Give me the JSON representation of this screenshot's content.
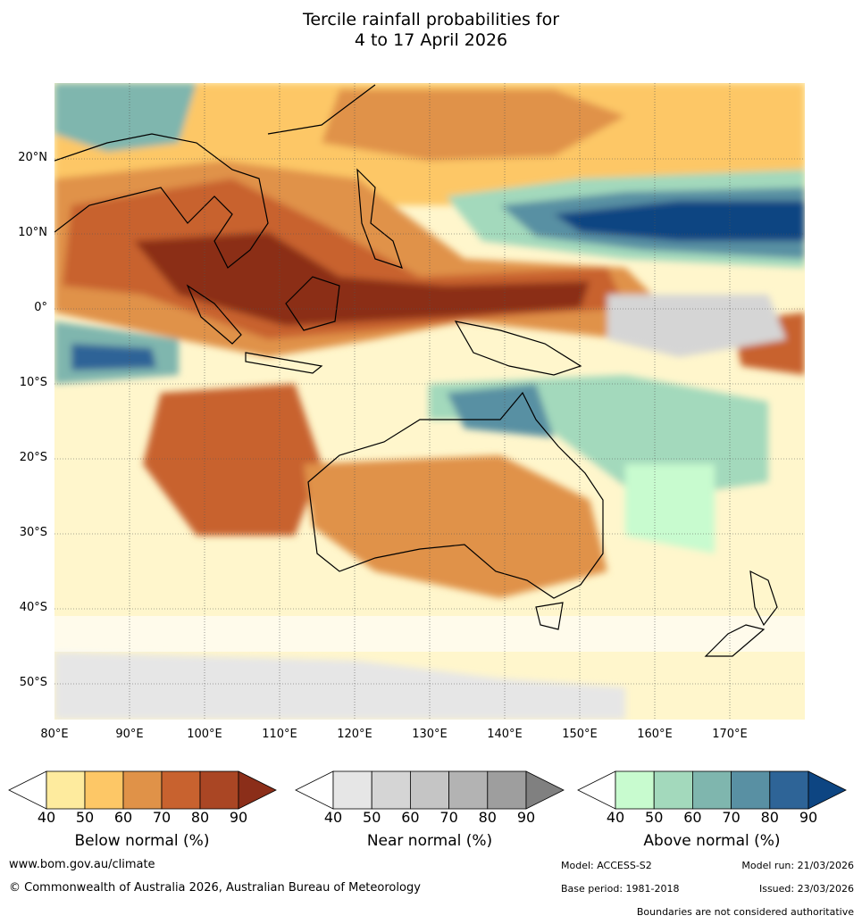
{
  "title": {
    "line1": "Tercile rainfall probabilities for",
    "line2": "4 to 17 April 2026"
  },
  "map": {
    "lat_labels": [
      "20°N",
      "10°N",
      "0°",
      "10°S",
      "20°S",
      "30°S",
      "40°S",
      "50°S"
    ],
    "lon_labels": [
      "80°E",
      "90°E",
      "100°E",
      "110°E",
      "120°E",
      "130°E",
      "140°E",
      "150°E",
      "160°E",
      "170°E"
    ]
  },
  "legend": {
    "below": {
      "label": "Below normal (%)",
      "ticks": [
        "40",
        "50",
        "60",
        "70",
        "80",
        "90"
      ],
      "colors": [
        "#ffffff",
        "#feeb9e",
        "#fdc766",
        "#e09248",
        "#c8622f",
        "#aa4624",
        "#8b2e19"
      ]
    },
    "near": {
      "label": "Near normal (%)",
      "ticks": [
        "40",
        "50",
        "60",
        "70",
        "80",
        "90"
      ],
      "colors": [
        "#ffffff",
        "#e6e6e6",
        "#d5d5d5",
        "#c5c5c5",
        "#b3b3b3",
        "#9e9e9e",
        "#808080"
      ]
    },
    "above": {
      "label": "Above normal (%)",
      "ticks": [
        "40",
        "50",
        "60",
        "70",
        "80",
        "90"
      ],
      "colors": [
        "#ffffff",
        "#c8fbcf",
        "#a3d9bc",
        "#7fb6ae",
        "#5990a3",
        "#2e6497",
        "#0d4582"
      ]
    }
  },
  "footer": {
    "website": "www.bom.gov.au/climate",
    "copyright": "© Commonwealth of Australia 2026, Australian Bureau of Meteorology",
    "model": "Model: ACCESS-S2",
    "model_run": "Model run: 21/03/2026",
    "base_period": "Base period: 1981-2018",
    "issued": "Issued: 23/03/2026",
    "disclaimer": "Boundaries are not considered authoritative"
  }
}
